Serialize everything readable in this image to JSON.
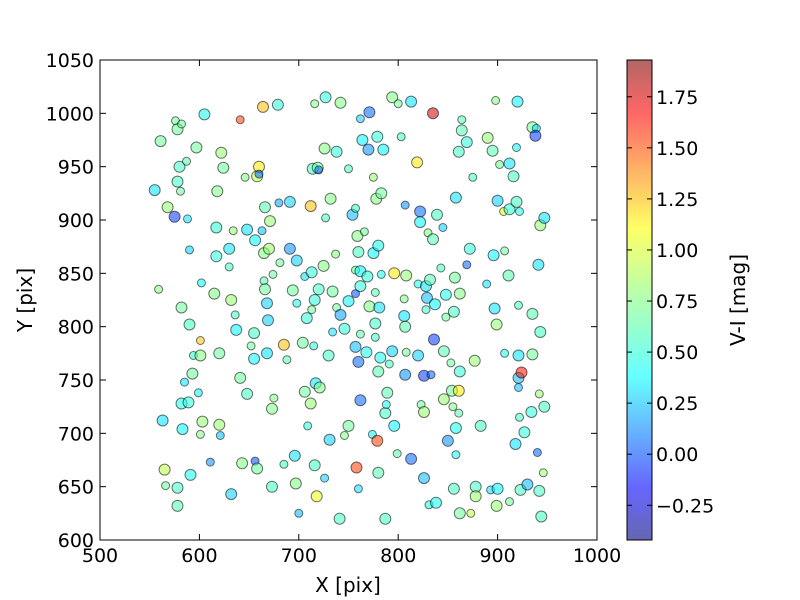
{
  "chart_data": {
    "type": "scatter",
    "title": "",
    "xlabel": "X [pix]",
    "ylabel": "Y [pix]",
    "xlim": [
      500,
      1000
    ],
    "ylim": [
      600,
      1050
    ],
    "xticks": [
      500,
      600,
      700,
      800,
      900,
      1000
    ],
    "yticks": [
      600,
      650,
      700,
      750,
      800,
      850,
      900,
      950,
      1000,
      1050
    ],
    "grid": false,
    "legend": "none",
    "colorbar": {
      "label": "V-I [mag]",
      "colormap": "jet",
      "range": [
        -0.42,
        1.93
      ],
      "ticks": [
        "−0.25",
        "0.00",
        "0.25",
        "0.50",
        "0.75",
        "1.00",
        "1.25",
        "1.50",
        "1.75"
      ],
      "tick_values": [
        -0.25,
        0.0,
        0.25,
        0.5,
        0.75,
        1.0,
        1.25,
        1.5,
        1.75
      ]
    },
    "points": [
      [
        576,
        993,
        0.7
      ],
      [
        578,
        985,
        0.7
      ],
      [
        561,
        974,
        0.7
      ],
      [
        582,
        990,
        0.7
      ],
      [
        597,
        968,
        0.7
      ],
      [
        605,
        999,
        0.5
      ],
      [
        641,
        994,
        1.5
      ],
      [
        664,
        1006,
        1.2
      ],
      [
        679,
        1008,
        0.55
      ],
      [
        716,
        1009,
        0.75
      ],
      [
        727,
        1015,
        0.55
      ],
      [
        742,
        1010,
        0.75
      ],
      [
        762,
        995,
        0.35
      ],
      [
        771,
        1001,
        0.1
      ],
      [
        794,
        1015,
        0.75
      ],
      [
        800,
        1009,
        0.7
      ],
      [
        813,
        1011,
        0.4
      ],
      [
        835,
        1000,
        1.75
      ],
      [
        864,
        994,
        0.65
      ],
      [
        864,
        984,
        0.65
      ],
      [
        869,
        973,
        0.55
      ],
      [
        898,
        1012,
        0.75
      ],
      [
        920,
        1011,
        0.45
      ],
      [
        935,
        987,
        0.7
      ],
      [
        939,
        986,
        0.4
      ],
      [
        938,
        979,
        0.0
      ],
      [
        580,
        950,
        0.6
      ],
      [
        587,
        955,
        0.65
      ],
      [
        622,
        963,
        0.8
      ],
      [
        624,
        949,
        0.7
      ],
      [
        646,
        940,
        0.75
      ],
      [
        658,
        941,
        0.9
      ],
      [
        660,
        950,
        1.1
      ],
      [
        660,
        943,
        0.1
      ],
      [
        714,
        948,
        0.6
      ],
      [
        719,
        949,
        0.7
      ],
      [
        720,
        947,
        0.1
      ],
      [
        726,
        967,
        0.75
      ],
      [
        738,
        964,
        0.55
      ],
      [
        750,
        948,
        0.6
      ],
      [
        764,
        975,
        0.45
      ],
      [
        770,
        966,
        0.2
      ],
      [
        775,
        940,
        0.8
      ],
      [
        779,
        978,
        0.55
      ],
      [
        785,
        966,
        0.45
      ],
      [
        803,
        978,
        0.6
      ],
      [
        819,
        954,
        1.1
      ],
      [
        861,
        964,
        0.6
      ],
      [
        875,
        940,
        0.6
      ],
      [
        890,
        977,
        0.8
      ],
      [
        895,
        965,
        0.65
      ],
      [
        902,
        952,
        0.7
      ],
      [
        912,
        953,
        0.4
      ],
      [
        916,
        941,
        0.6
      ],
      [
        919,
        968,
        0.45
      ],
      [
        555,
        928,
        0.4
      ],
      [
        578,
        936,
        0.6
      ],
      [
        581,
        927,
        0.7
      ],
      [
        568,
        912,
        0.8
      ],
      [
        575,
        903,
        0.0
      ],
      [
        588,
        901,
        0.4
      ],
      [
        618,
        927,
        0.75
      ],
      [
        617,
        893,
        0.55
      ],
      [
        634,
        890,
        0.8
      ],
      [
        648,
        891,
        0.4
      ],
      [
        656,
        881,
        0.45
      ],
      [
        663,
        890,
        0.3
      ],
      [
        666,
        912,
        0.65
      ],
      [
        671,
        899,
        0.8
      ],
      [
        680,
        916,
        0.25
      ],
      [
        691,
        917,
        0.35
      ],
      [
        712,
        913,
        1.2
      ],
      [
        727,
        902,
        0.6
      ],
      [
        732,
        920,
        0.75
      ],
      [
        754,
        905,
        0.3
      ],
      [
        757,
        911,
        0.6
      ],
      [
        778,
        920,
        0.75
      ],
      [
        783,
        925,
        0.7
      ],
      [
        807,
        914,
        0.2
      ],
      [
        822,
        908,
        0.1
      ],
      [
        822,
        898,
        0.45
      ],
      [
        830,
        888,
        0.75
      ],
      [
        835,
        882,
        0.65
      ],
      [
        839,
        905,
        0.6
      ],
      [
        845,
        893,
        0.35
      ],
      [
        858,
        921,
        0.4
      ],
      [
        900,
        918,
        0.35
      ],
      [
        906,
        908,
        1.0
      ],
      [
        912,
        910,
        0.55
      ],
      [
        919,
        917,
        0.6
      ],
      [
        922,
        908,
        0.5
      ],
      [
        943,
        895,
        0.8
      ],
      [
        947,
        902,
        0.4
      ],
      [
        590,
        872,
        0.35
      ],
      [
        617,
        866,
        0.55
      ],
      [
        630,
        873,
        0.4
      ],
      [
        630,
        856,
        0.6
      ],
      [
        665,
        869,
        0.75
      ],
      [
        670,
        873,
        0.8
      ],
      [
        681,
        860,
        0.7
      ],
      [
        691,
        873,
        0.2
      ],
      [
        698,
        862,
        0.35
      ],
      [
        706,
        847,
        0.4
      ],
      [
        713,
        851,
        0.55
      ],
      [
        725,
        857,
        0.75
      ],
      [
        737,
        868,
        0.75
      ],
      [
        760,
        870,
        0.6
      ],
      [
        759,
        885,
        0.75
      ],
      [
        766,
        889,
        0.7
      ],
      [
        775,
        869,
        0.45
      ],
      [
        780,
        876,
        0.5
      ],
      [
        757,
        853,
        0.7
      ],
      [
        762,
        852,
        0.45
      ],
      [
        769,
        847,
        0.55
      ],
      [
        783,
        849,
        0.5
      ],
      [
        796,
        850,
        1.1
      ],
      [
        808,
        848,
        0.8
      ],
      [
        820,
        840,
        0.5
      ],
      [
        828,
        838,
        0.4
      ],
      [
        832,
        844,
        0.65
      ],
      [
        843,
        855,
        0.6
      ],
      [
        829,
        827,
        0.3
      ],
      [
        857,
        846,
        0.7
      ],
      [
        869,
        858,
        0.1
      ],
      [
        872,
        873,
        0.55
      ],
      [
        896,
        867,
        0.45
      ],
      [
        907,
        871,
        0.7
      ],
      [
        911,
        848,
        0.65
      ],
      [
        941,
        858,
        0.4
      ],
      [
        559,
        835,
        0.75
      ],
      [
        582,
        818,
        0.7
      ],
      [
        590,
        802,
        0.6
      ],
      [
        602,
        841,
        0.45
      ],
      [
        615,
        831,
        0.75
      ],
      [
        632,
        825,
        0.8
      ],
      [
        636,
        811,
        0.6
      ],
      [
        637,
        797,
        0.45
      ],
      [
        655,
        794,
        0.6
      ],
      [
        665,
        843,
        0.65
      ],
      [
        666,
        835,
        0.7
      ],
      [
        668,
        822,
        0.35
      ],
      [
        674,
        849,
        0.7
      ],
      [
        669,
        806,
        0.35
      ],
      [
        694,
        834,
        0.7
      ],
      [
        698,
        822,
        0.5
      ],
      [
        720,
        835,
        0.6
      ],
      [
        716,
        825,
        0.55
      ],
      [
        713,
        816,
        0.7
      ],
      [
        708,
        808,
        0.55
      ],
      [
        734,
        833,
        0.7
      ],
      [
        738,
        818,
        0.7
      ],
      [
        742,
        811,
        0.25
      ],
      [
        750,
        824,
        0.45
      ],
      [
        757,
        831,
        0.05
      ],
      [
        762,
        838,
        0.55
      ],
      [
        771,
        819,
        0.75
      ],
      [
        777,
        832,
        0.65
      ],
      [
        781,
        818,
        0.4
      ],
      [
        777,
        803,
        0.6
      ],
      [
        806,
        826,
        0.75
      ],
      [
        806,
        810,
        0.4
      ],
      [
        807,
        800,
        0.65
      ],
      [
        828,
        816,
        0.6
      ],
      [
        837,
        821,
        0.45
      ],
      [
        848,
        830,
        0.5
      ],
      [
        848,
        809,
        0.7
      ],
      [
        856,
        814,
        0.6
      ],
      [
        862,
        831,
        0.75
      ],
      [
        889,
        840,
        0.4
      ],
      [
        897,
        817,
        0.4
      ],
      [
        899,
        802,
        0.8
      ],
      [
        921,
        820,
        0.6
      ],
      [
        935,
        812,
        0.65
      ],
      [
        943,
        795,
        0.6
      ],
      [
        594,
        773,
        0.55
      ],
      [
        593,
        756,
        0.7
      ],
      [
        601,
        773,
        0.75
      ],
      [
        601,
        787,
        1.2
      ],
      [
        620,
        775,
        0.7
      ],
      [
        641,
        752,
        0.7
      ],
      [
        652,
        782,
        0.7
      ],
      [
        655,
        770,
        0.45
      ],
      [
        668,
        775,
        0.4
      ],
      [
        688,
        769,
        0.65
      ],
      [
        685,
        783,
        1.2
      ],
      [
        704,
        785,
        0.7
      ],
      [
        715,
        782,
        0.55
      ],
      [
        717,
        747,
        0.4
      ],
      [
        730,
        773,
        0.6
      ],
      [
        734,
        795,
        0.4
      ],
      [
        746,
        798,
        0.55
      ],
      [
        757,
        781,
        0.3
      ],
      [
        762,
        793,
        0.65
      ],
      [
        760,
        767,
        0.1
      ],
      [
        768,
        776,
        0.5
      ],
      [
        777,
        790,
        0.6
      ],
      [
        780,
        758,
        0.65
      ],
      [
        782,
        771,
        0.5
      ],
      [
        791,
        765,
        0.6
      ],
      [
        794,
        777,
        0.35
      ],
      [
        807,
        755,
        0.2
      ],
      [
        808,
        776,
        0.7
      ],
      [
        820,
        773,
        0.35
      ],
      [
        826,
        754,
        0.0
      ],
      [
        833,
        755,
        0.1
      ],
      [
        836,
        788,
        0.0
      ],
      [
        846,
        777,
        0.65
      ],
      [
        853,
        766,
        0.7
      ],
      [
        862,
        758,
        0.55
      ],
      [
        877,
        768,
        0.8
      ],
      [
        907,
        775,
        0.5
      ],
      [
        921,
        773,
        0.4
      ],
      [
        921,
        752,
        0.3
      ],
      [
        921,
        743,
        0.3
      ],
      [
        924,
        757,
        1.6
      ],
      [
        935,
        774,
        0.7
      ],
      [
        585,
        748,
        0.4
      ],
      [
        582,
        728,
        0.5
      ],
      [
        589,
        729,
        0.55
      ],
      [
        599,
        738,
        0.45
      ],
      [
        563,
        712,
        0.4
      ],
      [
        583,
        704,
        0.45
      ],
      [
        601,
        699,
        0.75
      ],
      [
        603,
        711,
        0.8
      ],
      [
        620,
        708,
        0.8
      ],
      [
        621,
        698,
        0.3
      ],
      [
        648,
        737,
        0.6
      ],
      [
        673,
        723,
        0.75
      ],
      [
        675,
        733,
        0.75
      ],
      [
        706,
        739,
        0.7
      ],
      [
        712,
        728,
        0.8
      ],
      [
        709,
        707,
        0.55
      ],
      [
        721,
        743,
        0.75
      ],
      [
        731,
        694,
        0.35
      ],
      [
        746,
        698,
        0.75
      ],
      [
        750,
        707,
        0.7
      ],
      [
        762,
        731,
        0.1
      ],
      [
        774,
        699,
        0.45
      ],
      [
        779,
        693,
        1.5
      ],
      [
        787,
        719,
        0.6
      ],
      [
        788,
        727,
        0.5
      ],
      [
        789,
        738,
        0.65
      ],
      [
        796,
        707,
        0.45
      ],
      [
        823,
        727,
        0.7
      ],
      [
        826,
        720,
        0.8
      ],
      [
        846,
        732,
        0.8
      ],
      [
        855,
        725,
        0.75
      ],
      [
        854,
        740,
        0.7
      ],
      [
        861,
        740,
        1.1
      ],
      [
        861,
        719,
        0.65
      ],
      [
        858,
        705,
        0.5
      ],
      [
        883,
        707,
        0.6
      ],
      [
        922,
        715,
        0.6
      ],
      [
        927,
        701,
        0.55
      ],
      [
        934,
        720,
        0.55
      ],
      [
        942,
        737,
        0.8
      ],
      [
        947,
        725,
        0.6
      ],
      [
        918,
        690,
        0.4
      ],
      [
        940,
        682,
        0.1
      ],
      [
        578,
        632,
        0.65
      ],
      [
        565,
        666,
        0.9
      ],
      [
        566,
        651,
        0.7
      ],
      [
        578,
        649,
        0.6
      ],
      [
        591,
        661,
        0.5
      ],
      [
        611,
        673,
        0.2
      ],
      [
        632,
        643,
        0.35
      ],
      [
        643,
        672,
        0.75
      ],
      [
        656,
        674,
        0.05
      ],
      [
        658,
        667,
        0.7
      ],
      [
        673,
        650,
        0.6
      ],
      [
        685,
        671,
        0.6
      ],
      [
        696,
        679,
        0.4
      ],
      [
        697,
        653,
        0.75
      ],
      [
        700,
        625,
        0.3
      ],
      [
        716,
        670,
        0.6
      ],
      [
        718,
        641,
        1.0
      ],
      [
        726,
        658,
        0.35
      ],
      [
        741,
        620,
        0.6
      ],
      [
        758,
        668,
        1.5
      ],
      [
        760,
        648,
        0.4
      ],
      [
        780,
        663,
        0.65
      ],
      [
        787,
        620,
        0.6
      ],
      [
        799,
        681,
        0.65
      ],
      [
        813,
        676,
        0.1
      ],
      [
        826,
        658,
        0.3
      ],
      [
        831,
        633,
        0.5
      ],
      [
        838,
        635,
        0.5
      ],
      [
        850,
        693,
        0.2
      ],
      [
        858,
        680,
        0.5
      ],
      [
        856,
        648,
        0.6
      ],
      [
        862,
        625,
        0.7
      ],
      [
        873,
        625,
        0.9
      ],
      [
        878,
        650,
        0.6
      ],
      [
        878,
        641,
        0.8
      ],
      [
        893,
        647,
        0.4
      ],
      [
        899,
        632,
        0.8
      ],
      [
        900,
        648,
        0.45
      ],
      [
        912,
        636,
        0.7
      ],
      [
        923,
        647,
        0.6
      ],
      [
        930,
        652,
        0.3
      ],
      [
        946,
        663,
        0.8
      ],
      [
        942,
        646,
        0.6
      ],
      [
        944,
        622,
        0.6
      ]
    ]
  }
}
